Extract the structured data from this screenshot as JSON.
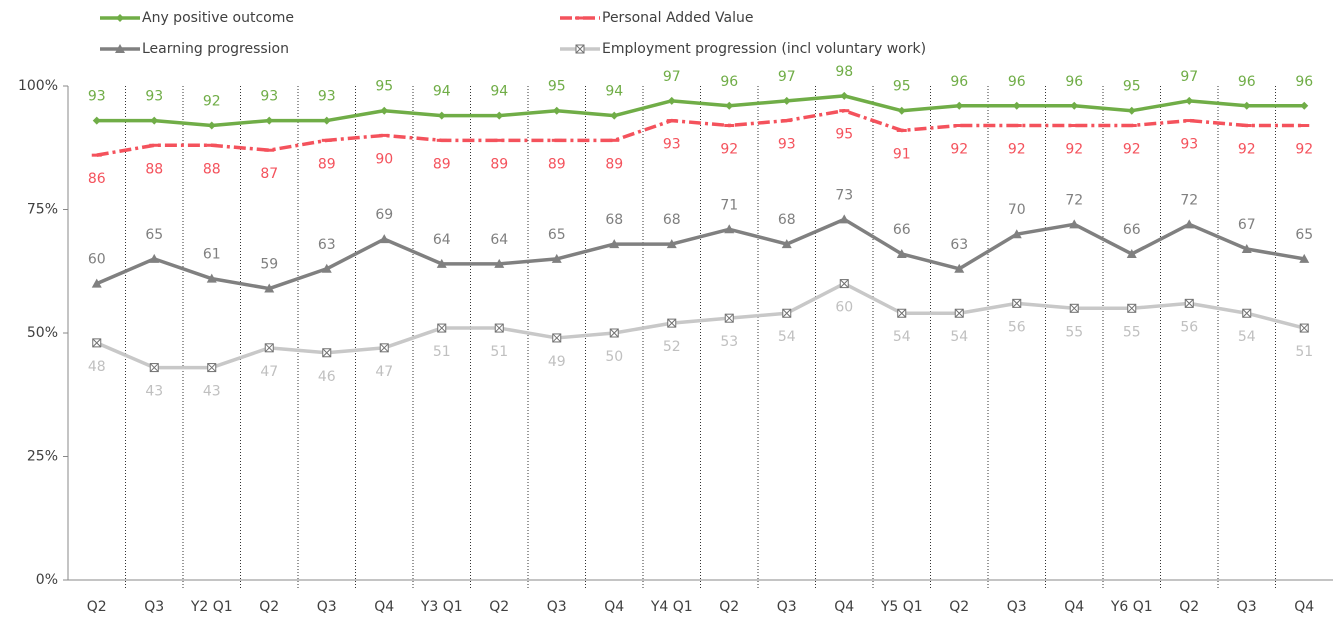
{
  "chart_data": {
    "type": "line",
    "categories": [
      "Q2",
      "Q3",
      "Y2 Q1",
      "Q2",
      "Q3",
      "Q4",
      "Y3 Q1",
      "Q2",
      "Q3",
      "Q4",
      "Y4 Q1",
      "Q2",
      "Q3",
      "Q4",
      "Y5 Q1",
      "Q2",
      "Q3",
      "Q4",
      "Y6 Q1",
      "Q2",
      "Q3",
      "Q4"
    ],
    "series": [
      {
        "name": "Any positive outcome",
        "color": "#70ad47",
        "label_color": "#70ad47",
        "marker": "diamond",
        "dash": false,
        "label_position": "above",
        "values": [
          93,
          93,
          92,
          93,
          93,
          95,
          94,
          94,
          95,
          94,
          97,
          96,
          97,
          98,
          95,
          96,
          96,
          96,
          95,
          97,
          96,
          96
        ]
      },
      {
        "name": "Personal Added Value",
        "color": "#f4525c",
        "label_color": "#f4525c",
        "marker": "dash",
        "dash": true,
        "label_position": "below",
        "values": [
          86,
          88,
          88,
          87,
          89,
          90,
          89,
          89,
          89,
          89,
          93,
          92,
          93,
          95,
          91,
          92,
          92,
          92,
          92,
          93,
          92,
          92
        ]
      },
      {
        "name": "Learning progression",
        "color": "#808080",
        "label_color": "#808080",
        "marker": "triangle",
        "dash": false,
        "label_position": "above",
        "values": [
          60,
          65,
          61,
          59,
          63,
          69,
          64,
          64,
          65,
          68,
          68,
          71,
          68,
          73,
          66,
          63,
          70,
          72,
          66,
          72,
          67,
          65
        ]
      },
      {
        "name": "Employment progression (incl voluntary work)",
        "color": "#c8c8c8",
        "label_color": "#c0c0c0",
        "marker": "xsquare",
        "dash": false,
        "label_position": "below",
        "values": [
          48,
          43,
          43,
          47,
          46,
          47,
          51,
          51,
          49,
          50,
          52,
          53,
          54,
          60,
          54,
          54,
          56,
          55,
          55,
          56,
          54,
          51
        ]
      }
    ],
    "ylim": [
      0,
      100
    ],
    "yticks": [
      {
        "value": 0,
        "label": "0%"
      },
      {
        "value": 25,
        "label": "25%"
      },
      {
        "value": 50,
        "label": "50%"
      },
      {
        "value": 75,
        "label": "75%"
      },
      {
        "value": 100,
        "label": "100%"
      }
    ],
    "legend": "top",
    "category_separators": true
  }
}
